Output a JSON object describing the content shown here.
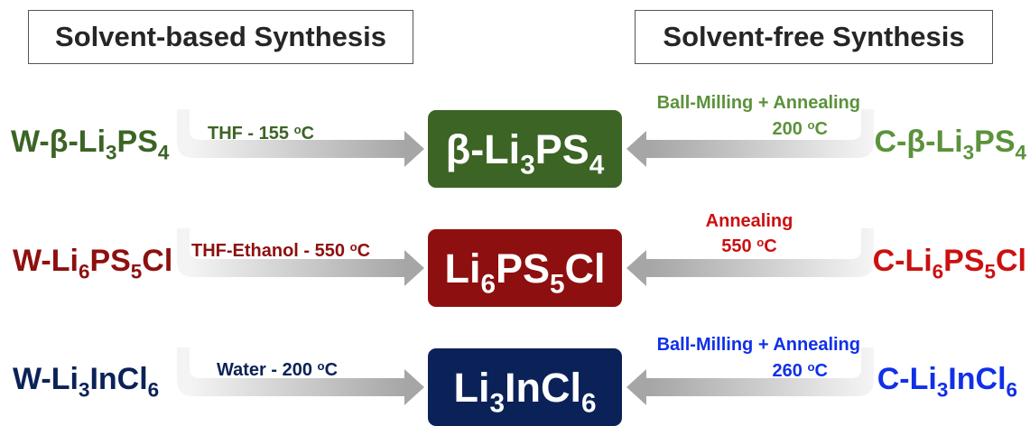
{
  "headers": {
    "solvent_based": "Solvent-based Synthesis",
    "solvent_free": "Solvent-free Synthesis"
  },
  "colors": {
    "row1_dark": "#3c6425",
    "row1_light": "#5b923b",
    "row2_dark": "#8e0f0f",
    "row2_light": "#cc1010",
    "row3_dark": "#0b2258",
    "row3_light": "#1030e8",
    "arrow_gray": "#a6a6a6"
  },
  "rows": [
    {
      "left": {
        "pre": "W-β-Li",
        "s1": "3",
        "mid": "PS",
        "s2": "4",
        "post": ""
      },
      "box": {
        "pre": "β-Li",
        "s1": "3",
        "mid": "PS",
        "s2": "4",
        "post": ""
      },
      "right": {
        "pre": "C-β-Li",
        "s1": "3",
        "mid": "PS",
        "s2": "4",
        "post": ""
      },
      "left_condition": {
        "text": "THF - 155 ",
        "deg": "o",
        "unit": "C"
      },
      "right_condition": {
        "line1": "Ball-Milling + Annealing",
        "text": "200 ",
        "deg": "o",
        "unit": "C"
      }
    },
    {
      "left": {
        "pre": "W-Li",
        "s1": "6",
        "mid": "PS",
        "s2": "5",
        "post": "Cl"
      },
      "box": {
        "pre": "Li",
        "s1": "6",
        "mid": "PS",
        "s2": "5",
        "post": "Cl"
      },
      "right": {
        "pre": "C-Li",
        "s1": "6",
        "mid": "PS",
        "s2": "5",
        "post": "Cl"
      },
      "left_condition": {
        "text": "THF-Ethanol - 550 ",
        "deg": "o",
        "unit": "C"
      },
      "right_condition": {
        "line1": "Annealing",
        "text": "550 ",
        "deg": "o",
        "unit": "C"
      }
    },
    {
      "left": {
        "pre": "W-Li",
        "s1": "3",
        "mid": "InCl",
        "s2": "6",
        "post": ""
      },
      "box": {
        "pre": "Li",
        "s1": "3",
        "mid": "InCl",
        "s2": "6",
        "post": ""
      },
      "right": {
        "pre": "C-Li",
        "s1": "3",
        "mid": "InCl",
        "s2": "6",
        "post": ""
      },
      "left_condition": {
        "text": "Water - 200 ",
        "deg": "o",
        "unit": "C"
      },
      "right_condition": {
        "line1": "Ball-Milling + Annealing",
        "text": "260 ",
        "deg": "o",
        "unit": "C"
      }
    }
  ]
}
